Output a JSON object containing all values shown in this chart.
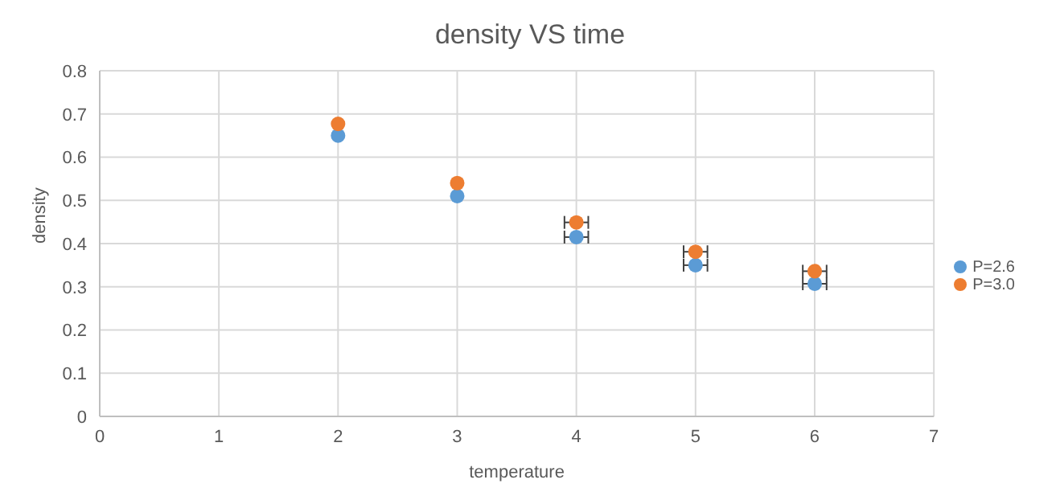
{
  "chart_data": {
    "type": "scatter",
    "title": "density VS time",
    "xlabel": "temperature",
    "ylabel": "density",
    "x": [
      2,
      3,
      4,
      5,
      6
    ],
    "series": [
      {
        "name": "P=2.6",
        "color": "#5b9bd5",
        "values": [
          0.65,
          0.51,
          0.415,
          0.35,
          0.307
        ],
        "xerrors": [
          null,
          null,
          0.1,
          0.1,
          0.1
        ]
      },
      {
        "name": "P=3.0",
        "color": "#ed7d31",
        "values": [
          0.677,
          0.54,
          0.449,
          0.381,
          0.336
        ],
        "xerrors": [
          null,
          null,
          0.1,
          0.1,
          0.1
        ]
      }
    ],
    "xlim": [
      0,
      7
    ],
    "xticks": [
      0,
      1,
      2,
      3,
      4,
      5,
      6,
      7
    ],
    "ylim": [
      0,
      0.8
    ],
    "yticks": [
      0,
      0.1,
      0.2,
      0.3,
      0.4,
      0.5,
      0.6,
      0.7,
      0.8
    ],
    "grid": true,
    "legend": "right",
    "marker": "circle"
  }
}
